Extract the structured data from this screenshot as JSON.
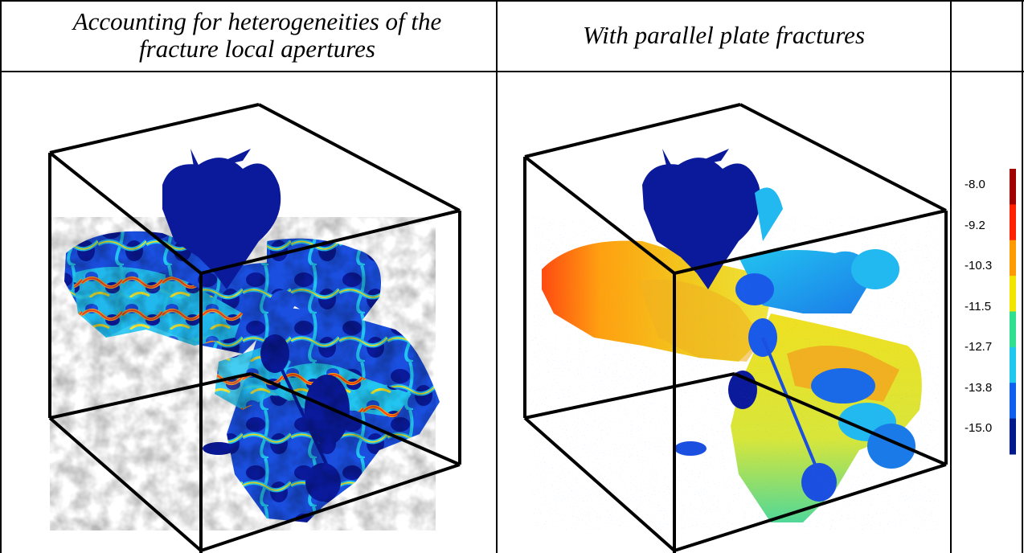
{
  "headers": {
    "left": "Accounting for heterogeneities of the fracture local apertures",
    "middle": "With parallel plate fractures",
    "right": ""
  },
  "colorbar": {
    "ticks": [
      "-8.0",
      "-9.2",
      "-10.3",
      "-11.5",
      "-12.7",
      "-13.8",
      "-15.0"
    ],
    "colors": [
      "#a00000",
      "#ff2000",
      "#ff9a00",
      "#f2e600",
      "#30e090",
      "#20c8f0",
      "#1060f0",
      "#001a8c"
    ]
  },
  "palette": {
    "navy": "#0a1a9a",
    "blue": "#1a5ae8",
    "cyan": "#22c4f0",
    "green": "#38e088",
    "yellow": "#f0e020",
    "orange": "#ffa010",
    "red": "#ff3010"
  }
}
